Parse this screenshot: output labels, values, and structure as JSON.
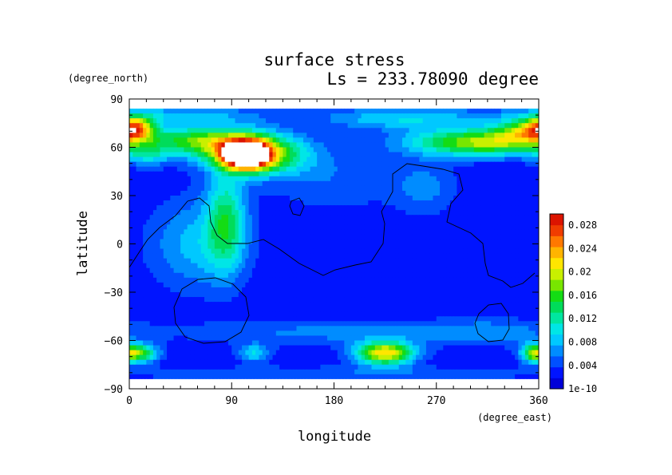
{
  "chart_data": {
    "type": "heatmap",
    "title": "surface stress",
    "subtitle": "Ls = 233.78090 degree",
    "xlabel": "longitude",
    "ylabel": "latitude",
    "x_unit": "(degree_east)",
    "y_unit": "(degree_north)",
    "xlim": [
      0,
      360
    ],
    "ylim": [
      -90,
      90
    ],
    "x_ticks": [
      "0",
      "90",
      "180",
      "270",
      "360"
    ],
    "y_ticks": [
      "90",
      "60",
      "30",
      "0",
      "−30",
      "−60",
      "−90"
    ],
    "colorbar_labels": [
      "0.028",
      "0.024",
      "0.02",
      "0.016",
      "0.012",
      "0.008",
      "0.004",
      "1e-10"
    ],
    "colorbar_max": 0.03,
    "colorbar_levels": 16,
    "colors": [
      "#0000d8",
      "#0014ff",
      "#0050ff",
      "#008cff",
      "#00c8ff",
      "#00e6e6",
      "#00e6a0",
      "#00dc5a",
      "#14dc14",
      "#78e600",
      "#c8f000",
      "#ffe600",
      "#ffb400",
      "#ff7800",
      "#f03c00",
      "#dc1400"
    ],
    "field": {
      "base": 0.0022,
      "blobs": [
        {
          "lon": 103,
          "lat": 55,
          "w": 14,
          "h": 6,
          "amp": 0.03
        },
        {
          "lon": 120,
          "lat": 55,
          "w": 28,
          "h": 9,
          "amp": 0.012
        },
        {
          "lon": 90,
          "lat": 60,
          "w": 30,
          "h": 8,
          "amp": 0.011
        },
        {
          "lon": 55,
          "lat": 65,
          "w": 30,
          "h": 6,
          "amp": 0.009
        },
        {
          "lon": 5,
          "lat": 72,
          "w": 12,
          "h": 5,
          "amp": 0.018
        },
        {
          "lon": 15,
          "lat": 55,
          "w": 14,
          "h": 5,
          "amp": 0.006
        },
        {
          "lon": 310,
          "lat": 63,
          "w": 45,
          "h": 6,
          "amp": 0.017
        },
        {
          "lon": 345,
          "lat": 70,
          "w": 18,
          "h": 5,
          "amp": 0.01
        },
        {
          "lon": 240,
          "lat": 78,
          "w": 50,
          "h": 5,
          "amp": 0.007
        },
        {
          "lon": 40,
          "lat": 80,
          "w": 55,
          "h": 4,
          "amp": 0.006
        },
        {
          "lon": 85,
          "lat": 15,
          "w": 12,
          "h": 22,
          "amp": 0.01
        },
        {
          "lon": 60,
          "lat": 0,
          "w": 30,
          "h": 20,
          "amp": 0.006
        },
        {
          "lon": 180,
          "lat": 40,
          "w": 40,
          "h": 15,
          "amp": 0.003
        },
        {
          "lon": 260,
          "lat": 35,
          "w": 20,
          "h": 12,
          "amp": 0.004
        },
        {
          "lon": 225,
          "lat": -68,
          "w": 18,
          "h": 5,
          "amp": 0.02
        },
        {
          "lon": 8,
          "lat": -68,
          "w": 12,
          "h": 4,
          "amp": 0.014
        },
        {
          "lon": 355,
          "lat": -68,
          "w": 8,
          "h": 4,
          "amp": 0.01
        },
        {
          "lon": 110,
          "lat": -68,
          "w": 10,
          "h": 4,
          "amp": 0.007
        },
        {
          "lon": 180,
          "lat": -55,
          "w": 90,
          "h": 6,
          "amp": 0.004
        },
        {
          "lon": 320,
          "lat": -55,
          "w": 40,
          "h": 6,
          "amp": 0.004
        },
        {
          "lon": 180,
          "lat": -80,
          "w": 200,
          "h": 3,
          "amp": 0.003
        }
      ]
    }
  }
}
